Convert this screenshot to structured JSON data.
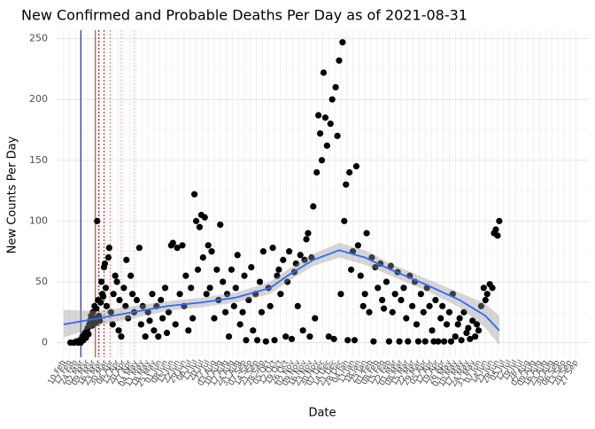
{
  "chart_data": {
    "type": "scatter",
    "title": "New Confirmed and Probable Deaths Per Day as of 2021-08-31",
    "x_label": "Date",
    "y_label": "New Counts Per Day",
    "xlim": [
      -8,
      610
    ],
    "ylim": [
      -12,
      257
    ],
    "yticks": [
      0,
      50,
      100,
      150,
      200,
      250
    ],
    "xticks": [
      {
        "value": 0,
        "label": "10 Feb"
      },
      {
        "value": 7,
        "label": "17 Feb"
      },
      {
        "value": 14,
        "label": "24 Feb"
      },
      {
        "value": 21,
        "label": "02 Mar"
      },
      {
        "value": 28,
        "label": "09 Mar"
      },
      {
        "value": 35,
        "label": "16 Mar"
      },
      {
        "value": 42,
        "label": "23 Mar"
      },
      {
        "value": 49,
        "label": "30 Mar"
      },
      {
        "value": 56,
        "label": "06 Apr"
      },
      {
        "value": 63,
        "label": "13 Apr"
      },
      {
        "value": 70,
        "label": "20 Apr"
      },
      {
        "value": 77,
        "label": "27 Apr"
      },
      {
        "value": 84,
        "label": "04 May"
      },
      {
        "value": 91,
        "label": "11 May"
      },
      {
        "value": 98,
        "label": "18 May"
      },
      {
        "value": 105,
        "label": "25 May"
      },
      {
        "value": 112,
        "label": "01 Jun"
      },
      {
        "value": 119,
        "label": "08 Jun"
      },
      {
        "value": 126,
        "label": "15 Jun"
      },
      {
        "value": 133,
        "label": "22 Jun"
      },
      {
        "value": 140,
        "label": "29 Jun"
      },
      {
        "value": 147,
        "label": "06 Jul"
      },
      {
        "value": 154,
        "label": "13 Jul"
      },
      {
        "value": 161,
        "label": "20 Jul"
      },
      {
        "value": 168,
        "label": "27 Jul"
      },
      {
        "value": 175,
        "label": "03 Aug"
      },
      {
        "value": 182,
        "label": "10 Aug"
      },
      {
        "value": 189,
        "label": "17 Aug"
      },
      {
        "value": 196,
        "label": "24 Aug"
      },
      {
        "value": 203,
        "label": "31 Aug"
      },
      {
        "value": 210,
        "label": "07 Sep"
      },
      {
        "value": 217,
        "label": "14 Sep"
      },
      {
        "value": 224,
        "label": "21 Sep"
      },
      {
        "value": 231,
        "label": "28 Sep"
      },
      {
        "value": 238,
        "label": "05 Oct"
      },
      {
        "value": 245,
        "label": "12 Oct"
      },
      {
        "value": 252,
        "label": "19 Oct"
      },
      {
        "value": 259,
        "label": "26 Oct"
      },
      {
        "value": 266,
        "label": "02 Nov"
      },
      {
        "value": 273,
        "label": "09 Nov"
      },
      {
        "value": 280,
        "label": "16 Nov"
      },
      {
        "value": 287,
        "label": "23 Nov"
      },
      {
        "value": 294,
        "label": "30 Nov"
      },
      {
        "value": 301,
        "label": "07 Dec"
      },
      {
        "value": 308,
        "label": "14 Dec"
      },
      {
        "value": 315,
        "label": "21 Dec"
      },
      {
        "value": 322,
        "label": "28 Dec"
      },
      {
        "value": 329,
        "label": "04 Jan"
      },
      {
        "value": 336,
        "label": "11 Jan"
      },
      {
        "value": 343,
        "label": "18 Jan"
      },
      {
        "value": 350,
        "label": "25 Jan"
      },
      {
        "value": 357,
        "label": "01 Feb"
      },
      {
        "value": 364,
        "label": "08 Feb"
      },
      {
        "value": 371,
        "label": "15 Feb"
      },
      {
        "value": 378,
        "label": "22 Feb"
      },
      {
        "value": 385,
        "label": "01 Mar"
      },
      {
        "value": 392,
        "label": "08 Mar"
      },
      {
        "value": 399,
        "label": "15 Mar"
      },
      {
        "value": 406,
        "label": "22 Mar"
      },
      {
        "value": 413,
        "label": "29 Mar"
      },
      {
        "value": 420,
        "label": "05 Apr"
      },
      {
        "value": 427,
        "label": "12 Apr"
      },
      {
        "value": 434,
        "label": "19 Apr"
      },
      {
        "value": 441,
        "label": "26 Apr"
      },
      {
        "value": 448,
        "label": "03 May"
      },
      {
        "value": 455,
        "label": "10 May"
      },
      {
        "value": 462,
        "label": "17 May"
      },
      {
        "value": 469,
        "label": "24 May"
      },
      {
        "value": 476,
        "label": "31 May"
      },
      {
        "value": 483,
        "label": "07 Jun"
      },
      {
        "value": 490,
        "label": "14 Jun"
      },
      {
        "value": 497,
        "label": "21 Jun"
      },
      {
        "value": 504,
        "label": "28 Jun"
      },
      {
        "value": 511,
        "label": "05 Jul"
      },
      {
        "value": 518,
        "label": "12 Jul"
      },
      {
        "value": 525,
        "label": "19 Jul"
      },
      {
        "value": 532,
        "label": "26 Jul"
      },
      {
        "value": 539,
        "label": "02 Aug"
      },
      {
        "value": 546,
        "label": "09 Aug"
      },
      {
        "value": 553,
        "label": "16 Aug"
      },
      {
        "value": 560,
        "label": "23 Aug"
      },
      {
        "value": 567,
        "label": "30 Aug"
      },
      {
        "value": 574,
        "label": "06 Sep"
      },
      {
        "value": 581,
        "label": "13 Sep"
      },
      {
        "value": 588,
        "label": "20 Sep"
      },
      {
        "value": 595,
        "label": "27 Sep"
      }
    ],
    "grid": true,
    "vlines": [
      {
        "x": 20,
        "color": "#00008b",
        "style": "solid"
      },
      {
        "x": 37,
        "color": "#b22222",
        "style": "solid"
      },
      {
        "x": 41,
        "color": "#8b0000",
        "style": "dotted"
      },
      {
        "x": 47,
        "color": "#b22222",
        "style": "dotted"
      },
      {
        "x": 54,
        "color": "#e07070",
        "style": "dotted"
      },
      {
        "x": 67,
        "color": "#f0a0a0",
        "style": "dotted"
      },
      {
        "x": 82,
        "color": "#c8c8c8",
        "style": "dotted"
      }
    ],
    "series": [
      {
        "name": "deaths",
        "color": "#000000",
        "x": [
          8,
          12,
          15,
          17,
          19,
          20,
          21,
          22,
          23,
          24,
          25,
          26,
          27,
          28,
          29,
          30,
          31,
          32,
          33,
          34,
          35,
          36,
          37,
          38,
          39,
          40,
          41,
          42,
          43,
          44,
          45,
          46,
          47,
          48,
          49,
          50,
          52,
          53,
          55,
          57,
          58,
          60,
          62,
          64,
          65,
          67,
          70,
          72,
          73,
          75,
          78,
          80,
          82,
          85,
          88,
          90,
          92,
          95,
          98,
          100,
          103,
          105,
          108,
          110,
          113,
          115,
          118,
          120,
          122,
          125,
          127,
          130,
          132,
          135,
          138,
          140,
          142,
          145,
          148,
          150,
          152,
          154,
          156,
          158,
          160,
          162,
          164,
          166,
          168,
          170,
          172,
          175,
          178,
          180,
          182,
          185,
          188,
          190,
          192,
          195,
          198,
          200,
          202,
          205,
          208,
          210,
          212,
          215,
          218,
          220,
          223,
          225,
          228,
          230,
          232,
          235,
          238,
          240,
          243,
          245,
          248,
          250,
          252,
          255,
          258,
          260,
          262,
          265,
          268,
          270,
          272,
          275,
          278,
          280,
          282,
          284,
          286,
          288,
          290,
          292,
          294,
          296,
          298,
          300,
          302,
          304,
          306,
          308,
          310,
          312,
          314,
          316,
          318,
          320,
          322,
          324,
          326,
          328,
          330,
          332,
          334,
          336,
          338,
          340,
          342,
          345,
          348,
          350,
          352,
          355,
          358,
          360,
          362,
          365,
          368,
          370,
          372,
          375,
          378,
          380,
          382,
          385,
          388,
          390,
          392,
          395,
          398,
          400,
          402,
          405,
          408,
          410,
          412,
          415,
          418,
          420,
          422,
          425,
          428,
          430,
          432,
          435,
          438,
          440,
          442,
          445,
          448,
          450,
          452,
          455,
          458,
          460,
          462,
          465,
          468,
          470,
          472,
          475,
          478,
          480,
          482,
          485,
          488,
          490,
          492,
          495,
          498,
          500,
          502,
          504,
          506
        ],
        "values": [
          0,
          0,
          1,
          0,
          2,
          0,
          3,
          5,
          2,
          6,
          8,
          4,
          10,
          12,
          7,
          15,
          18,
          22,
          14,
          25,
          20,
          30,
          16,
          28,
          100,
          35,
          22,
          18,
          33,
          50,
          40,
          38,
          62,
          65,
          45,
          30,
          70,
          78,
          25,
          15,
          40,
          55,
          50,
          10,
          35,
          5,
          45,
          30,
          68,
          20,
          55,
          40,
          25,
          35,
          78,
          15,
          30,
          5,
          25,
          18,
          40,
          10,
          30,
          5,
          35,
          20,
          45,
          8,
          25,
          80,
          82,
          15,
          78,
          40,
          80,
          30,
          55,
          10,
          45,
          20,
          122,
          100,
          60,
          95,
          105,
          70,
          103,
          40,
          80,
          45,
          75,
          20,
          60,
          35,
          97,
          50,
          25,
          40,
          5,
          60,
          30,
          45,
          72,
          15,
          25,
          55,
          2,
          35,
          62,
          10,
          40,
          2,
          50,
          25,
          75,
          1,
          45,
          30,
          78,
          2,
          55,
          60,
          40,
          68,
          5,
          50,
          75,
          3,
          58,
          65,
          30,
          72,
          10,
          68,
          85,
          90,
          5,
          70,
          112,
          20,
          140,
          187,
          172,
          150,
          222,
          185,
          162,
          5,
          180,
          200,
          3,
          210,
          170,
          232,
          40,
          247,
          100,
          130,
          2,
          140,
          60,
          75,
          2,
          145,
          80,
          55,
          30,
          40,
          90,
          25,
          70,
          1,
          62,
          45,
          65,
          35,
          28,
          50,
          1,
          63,
          25,
          40,
          58,
          1,
          35,
          45,
          20,
          1,
          55,
          30,
          50,
          15,
          1,
          40,
          25,
          1,
          45,
          30,
          10,
          1,
          35,
          1,
          20,
          30,
          1,
          15,
          25,
          1,
          40,
          5,
          15,
          20,
          2,
          25,
          8,
          12,
          3,
          18,
          5,
          15,
          10,
          30,
          45,
          35,
          40,
          48,
          45,
          90,
          93,
          88,
          100
        ]
      },
      {
        "name": "smooth",
        "color": "#3366ff",
        "x": [
          0,
          40,
          80,
          120,
          160,
          200,
          240,
          260,
          290,
          320,
          350,
          380,
          420,
          460,
          490,
          506
        ],
        "values": [
          15,
          20,
          25,
          30,
          33,
          37,
          45,
          55,
          68,
          76,
          70,
          60,
          48,
          35,
          22,
          10
        ],
        "lower": [
          4,
          14,
          20,
          26,
          29,
          33,
          40,
          50,
          63,
          70,
          64,
          55,
          43,
          29,
          12,
          -2
        ],
        "upper": [
          27,
          26,
          30,
          34,
          37,
          41,
          50,
          60,
          73,
          82,
          76,
          65,
          53,
          41,
          32,
          22
        ]
      }
    ]
  }
}
